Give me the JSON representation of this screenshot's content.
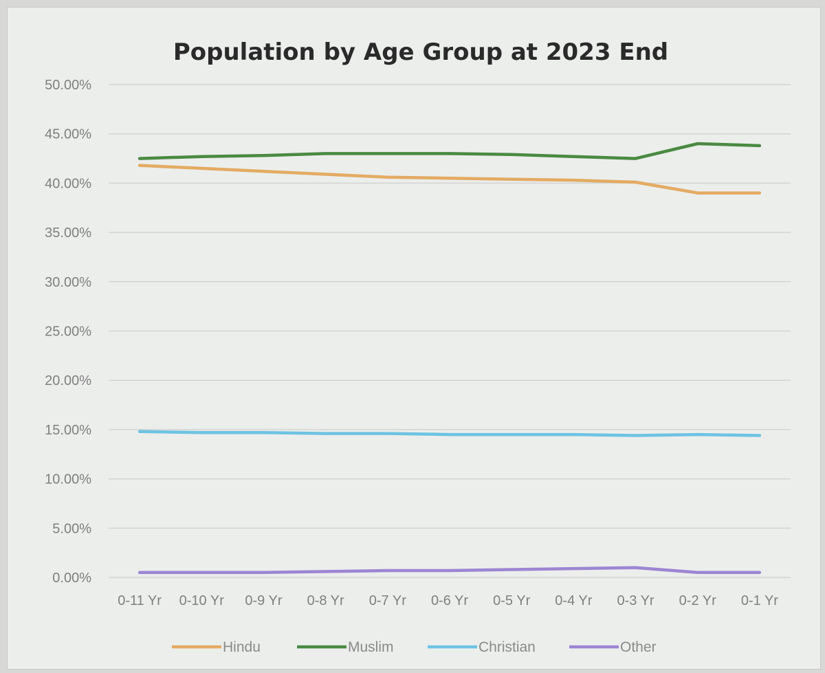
{
  "chart_data": {
    "type": "line",
    "title": "Population by Age Group at 2023 End",
    "xlabel": "",
    "ylabel": "",
    "ylim": [
      0,
      50
    ],
    "yticks": [
      "0.00%",
      "5.00%",
      "10.00%",
      "15.00%",
      "20.00%",
      "25.00%",
      "30.00%",
      "35.00%",
      "40.00%",
      "45.00%",
      "50.00%"
    ],
    "categories": [
      "0-11 Yr",
      "0-10 Yr",
      "0-9 Yr",
      "0-8 Yr",
      "0-7 Yr",
      "0-6 Yr",
      "0-5 Yr",
      "0-4 Yr",
      "0-3 Yr",
      "0-2 Yr",
      "0-1 Yr"
    ],
    "grid": true,
    "legend_position": "bottom",
    "series": [
      {
        "name": "Hindu",
        "color": "#e3ab63",
        "values": [
          41.8,
          41.5,
          41.2,
          40.9,
          40.6,
          40.5,
          40.4,
          40.3,
          40.1,
          39.0,
          39.0
        ]
      },
      {
        "name": "Muslim",
        "color": "#4a8a42",
        "values": [
          42.5,
          42.7,
          42.8,
          43.0,
          43.0,
          43.0,
          42.9,
          42.7,
          42.5,
          44.0,
          43.8
        ]
      },
      {
        "name": "Christian",
        "color": "#6ec3e2",
        "values": [
          14.8,
          14.7,
          14.7,
          14.6,
          14.6,
          14.5,
          14.5,
          14.5,
          14.4,
          14.5,
          14.4
        ]
      },
      {
        "name": "Other",
        "color": "#9c86d2",
        "values": [
          0.5,
          0.5,
          0.5,
          0.6,
          0.7,
          0.7,
          0.8,
          0.9,
          1.0,
          0.5,
          0.5
        ]
      }
    ]
  }
}
